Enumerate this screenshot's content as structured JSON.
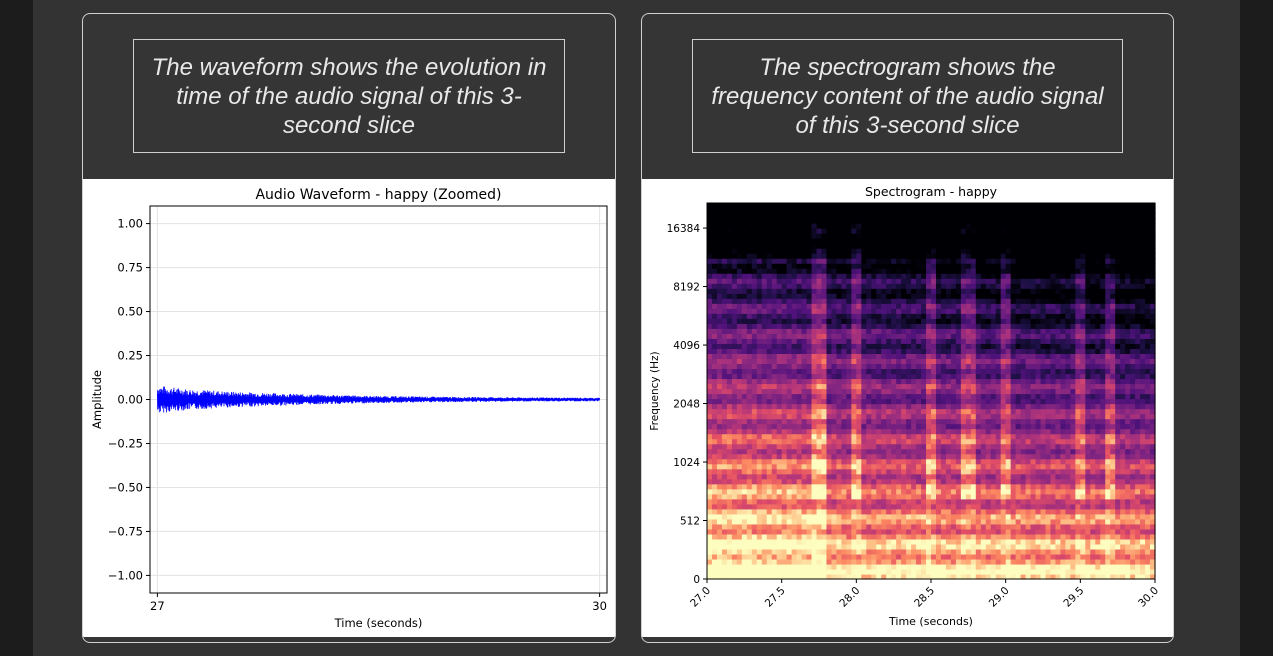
{
  "captions": {
    "waveform": "The waveform shows the evolution in time of the audio signal of this 3-second slice",
    "spectrogram": "The spectrogram shows the frequency content of the audio signal of this 3-second slice"
  },
  "chart_data": [
    {
      "type": "line",
      "title": "Audio Waveform - happy (Zoomed)",
      "xlabel": "Time (seconds)",
      "ylabel": "Amplitude",
      "xlim": [
        26.95,
        30.05
      ],
      "ylim": [
        -1.1,
        1.1
      ],
      "x_ticks": [
        27,
        30
      ],
      "x_tick_labels": [
        "27",
        "30"
      ],
      "y_ticks": [
        1.0,
        0.75,
        0.5,
        0.25,
        0.0,
        -0.25,
        -0.5,
        -0.75,
        -1.0
      ],
      "y_tick_labels": [
        "1.00",
        "0.75",
        "0.50",
        "0.25",
        "0.00",
        "−0.25",
        "−0.50",
        "−0.75",
        "−1.00"
      ],
      "grid": true,
      "series": [
        {
          "color": "#0000ff",
          "envelope": {
            "x": [
              27.0,
              27.2,
              27.5,
              28.0,
              28.5,
              29.0,
              29.5,
              30.0
            ],
            "amplitude": [
              0.08,
              0.06,
              0.045,
              0.03,
              0.02,
              0.015,
              0.012,
              0.01
            ]
          }
        }
      ]
    },
    {
      "type": "heatmap",
      "title": "Spectrogram - happy",
      "xlabel": "Time (seconds)",
      "ylabel": "Frequency (Hz)",
      "xlim": [
        27.0,
        30.0
      ],
      "x_ticks": [
        27.0,
        27.5,
        28.0,
        28.5,
        29.0,
        29.5,
        30.0
      ],
      "x_tick_labels": [
        "27.0",
        "27.5",
        "28.0",
        "28.5",
        "29.0",
        "29.5",
        "30.0"
      ],
      "y_scale": "symlog",
      "y_ticks": [
        0,
        512,
        1024,
        2048,
        4096,
        8192,
        16384
      ],
      "y_tick_labels": [
        "0",
        "512",
        "1024",
        "2048",
        "4096",
        "8192",
        "16384"
      ],
      "colormap": "magma",
      "onsets_seconds": [
        27.75,
        28.0,
        28.5,
        28.75,
        29.0,
        29.5,
        29.7
      ]
    }
  ]
}
